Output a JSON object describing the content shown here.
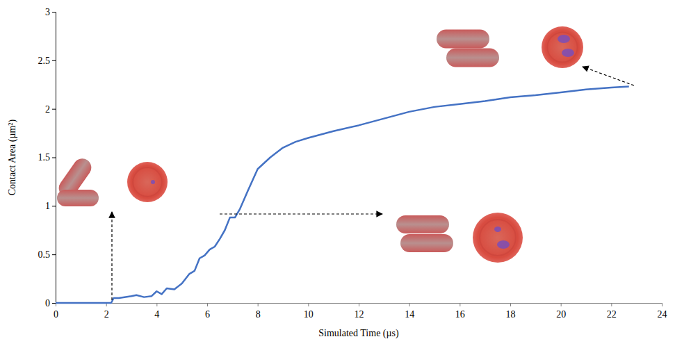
{
  "chart_data": {
    "type": "line",
    "x_label": "Simulated Time (µs)",
    "y_label": "Contact Area (µm²)",
    "x": [
      0,
      0.5,
      1,
      1.5,
      2,
      2.2,
      2.3,
      2.5,
      3,
      3.2,
      3.5,
      3.8,
      4,
      4.2,
      4.4,
      4.7,
      5,
      5.3,
      5.5,
      5.7,
      5.9,
      6.1,
      6.3,
      6.5,
      6.7,
      6.9,
      7.1,
      7.3,
      7.6,
      8,
      8.5,
      9,
      9.5,
      10,
      11,
      12,
      13,
      14,
      15,
      16,
      17,
      18,
      19,
      20,
      21,
      22,
      22.7
    ],
    "values": [
      0,
      0,
      0,
      0,
      0,
      0,
      0.05,
      0.05,
      0.07,
      0.08,
      0.06,
      0.07,
      0.12,
      0.09,
      0.15,
      0.14,
      0.2,
      0.3,
      0.33,
      0.46,
      0.49,
      0.55,
      0.58,
      0.66,
      0.75,
      0.88,
      0.88,
      0.97,
      1.15,
      1.38,
      1.5,
      1.6,
      1.66,
      1.7,
      1.77,
      1.83,
      1.9,
      1.97,
      2.02,
      2.05,
      2.08,
      2.12,
      2.14,
      2.17,
      2.2,
      2.22,
      2.23
    ],
    "color": "#4472c4",
    "xlim": [
      0,
      24
    ],
    "xticks": [
      0,
      2,
      4,
      6,
      8,
      10,
      12,
      14,
      16,
      18,
      20,
      22,
      24
    ],
    "ylim": [
      0,
      3
    ],
    "yticks": [
      0,
      0.5,
      1,
      1.5,
      2,
      2.5,
      3
    ],
    "grid": false
  }
}
